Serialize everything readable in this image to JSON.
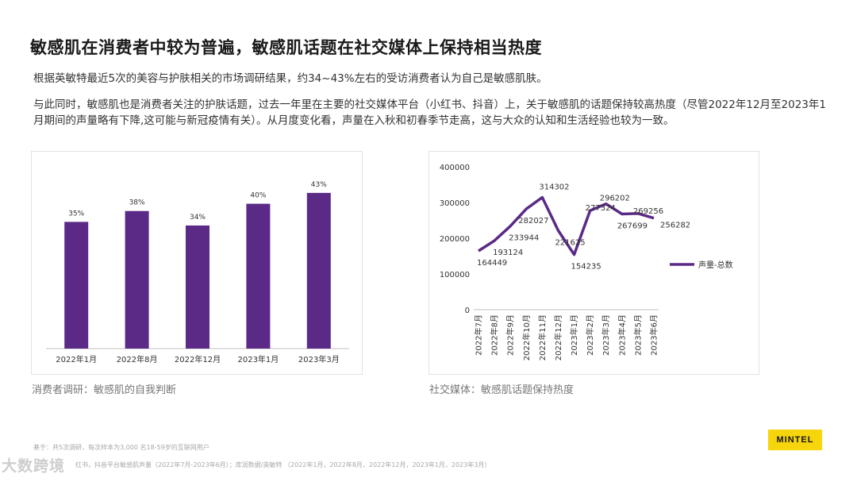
{
  "title": "敏感肌在消费者中较为普遍，敏感肌话题在社交媒体上保持相当热度",
  "paragraph1": "根据英敏特最近5次的美容与护肤相关的市场调研结果，约34~43%左右的受访消费者认为自己是敏感肌肤。",
  "paragraph2": "与此同时，敏感肌也是消费者关注的护肤话题，过去一年里在主要的社交媒体平台（小红书、抖音）上，关于敏感肌的话题保持较高热度（尽管2022年12月至2023年1月期间的声量略有下降,这可能与新冠疫情有关）。从月度变化看，声量在入秋和初春季节走高，这与大众的认知和生活经验也较为一致。",
  "caption_left": "消费者调研：敏感肌的自我判断",
  "caption_right": "社交媒体：敏感肌话题保持热度",
  "footnote1": "基于：共5次调研，每次样本为3,000 名18-59岁的互联网用户",
  "footnote2": "红书，抖音平台敏感肌声量（2022年7月-2023年6月）；库润数据/英敏特 （2022年1月，2022年8月，2022年12月，2023年1月，2023年3月）",
  "logo": "MINTEL",
  "watermark": "大数跨境",
  "colors": {
    "series": "#5b2a86"
  },
  "chart_data": [
    {
      "type": "bar",
      "categories": [
        "2022年1月",
        "2022年8月",
        "2022年12月",
        "2023年1月",
        "2023年3月"
      ],
      "values": [
        35,
        38,
        34,
        40,
        43
      ],
      "labels": [
        "35%",
        "38%",
        "34%",
        "40%",
        "43%"
      ],
      "ylim": [
        0,
        50
      ],
      "grid": false
    },
    {
      "type": "line",
      "categories": [
        "2022年7月",
        "2022年8月",
        "2022年9月",
        "2022年10月",
        "2022年11月",
        "2022年12月",
        "2023年1月",
        "2023年2月",
        "2023年3月",
        "2023年4月",
        "2023年5月",
        "2023年6月"
      ],
      "series": [
        {
          "name": "声量-总数",
          "values": [
            164449,
            193124,
            233944,
            282027,
            314302,
            221625,
            154235,
            277324,
            296202,
            267699,
            269256,
            256282
          ]
        }
      ],
      "yticks": [
        "0",
        "100000",
        "200000",
        "300000",
        "400000"
      ],
      "ylim": [
        0,
        400000
      ],
      "grid": false,
      "legend": "right"
    }
  ]
}
